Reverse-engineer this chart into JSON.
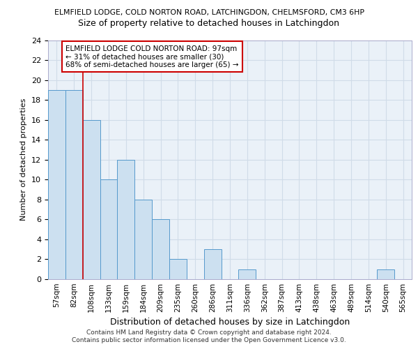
{
  "title_line1": "ELMFIELD LODGE, COLD NORTON ROAD, LATCHINGDON, CHELMSFORD, CM3 6HP",
  "title_line2": "Size of property relative to detached houses in Latchingdon",
  "xlabel": "Distribution of detached houses by size in Latchingdon",
  "ylabel": "Number of detached properties",
  "categories": [
    "57sqm",
    "82sqm",
    "108sqm",
    "133sqm",
    "159sqm",
    "184sqm",
    "209sqm",
    "235sqm",
    "260sqm",
    "286sqm",
    "311sqm",
    "336sqm",
    "362sqm",
    "387sqm",
    "413sqm",
    "438sqm",
    "463sqm",
    "489sqm",
    "514sqm",
    "540sqm",
    "565sqm"
  ],
  "values": [
    19,
    19,
    16,
    10,
    12,
    8,
    6,
    2,
    0,
    3,
    0,
    1,
    0,
    0,
    0,
    0,
    0,
    0,
    0,
    1,
    0
  ],
  "bar_color": "#cce0f0",
  "bar_edge_color": "#5599cc",
  "grid_color": "#d0dce8",
  "background_color": "#ffffff",
  "plot_bg_color": "#eaf1f8",
  "red_line_x": 1.5,
  "red_line_color": "#cc0000",
  "ylim": [
    0,
    24
  ],
  "yticks": [
    0,
    2,
    4,
    6,
    8,
    10,
    12,
    14,
    16,
    18,
    20,
    22,
    24
  ],
  "annotation_text": "ELMFIELD LODGE COLD NORTON ROAD: 97sqm\n← 31% of detached houses are smaller (30)\n68% of semi-detached houses are larger (65) →",
  "footnote1": "Contains HM Land Registry data © Crown copyright and database right 2024.",
  "footnote2": "Contains public sector information licensed under the Open Government Licence v3.0."
}
